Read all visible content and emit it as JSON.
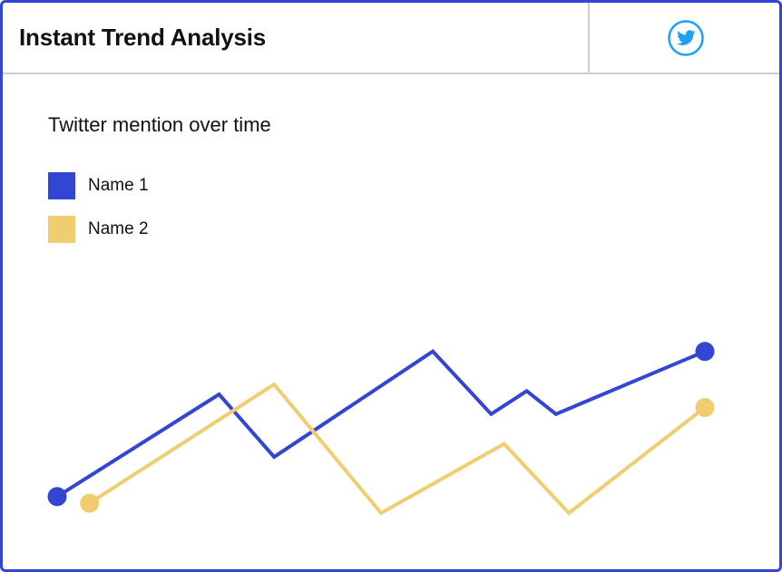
{
  "header": {
    "title": "Instant Trend Analysis",
    "share_icon": "twitter-icon"
  },
  "colors": {
    "frame": "#3346d3",
    "divider": "#cfcfcf",
    "twitter": "#1da1f2"
  },
  "chart_data": {
    "type": "line",
    "title": "Twitter mention over time",
    "xlabel": "",
    "ylabel": "",
    "axes_visible": false,
    "grid": false,
    "legend_placement": "top-left",
    "series": [
      {
        "name": "Name 1",
        "color": "#3346d3",
        "points": [
          {
            "x": 0,
            "y": 5
          },
          {
            "x": 25,
            "y": 36
          },
          {
            "x": 33.5,
            "y": 17
          },
          {
            "x": 58,
            "y": 49
          },
          {
            "x": 67,
            "y": 30
          },
          {
            "x": 72.5,
            "y": 37
          },
          {
            "x": 77,
            "y": 30
          },
          {
            "x": 100,
            "y": 49
          }
        ],
        "end_markers": true
      },
      {
        "name": "Name 2",
        "color": "#f0cd70",
        "points": [
          {
            "x": 5,
            "y": 3
          },
          {
            "x": 33.5,
            "y": 39
          },
          {
            "x": 50,
            "y": 0
          },
          {
            "x": 69,
            "y": 21
          },
          {
            "x": 79,
            "y": 0
          },
          {
            "x": 100,
            "y": 32
          }
        ],
        "end_markers": true
      }
    ],
    "xlim": [
      0,
      100
    ],
    "ylim": [
      0,
      50
    ]
  }
}
